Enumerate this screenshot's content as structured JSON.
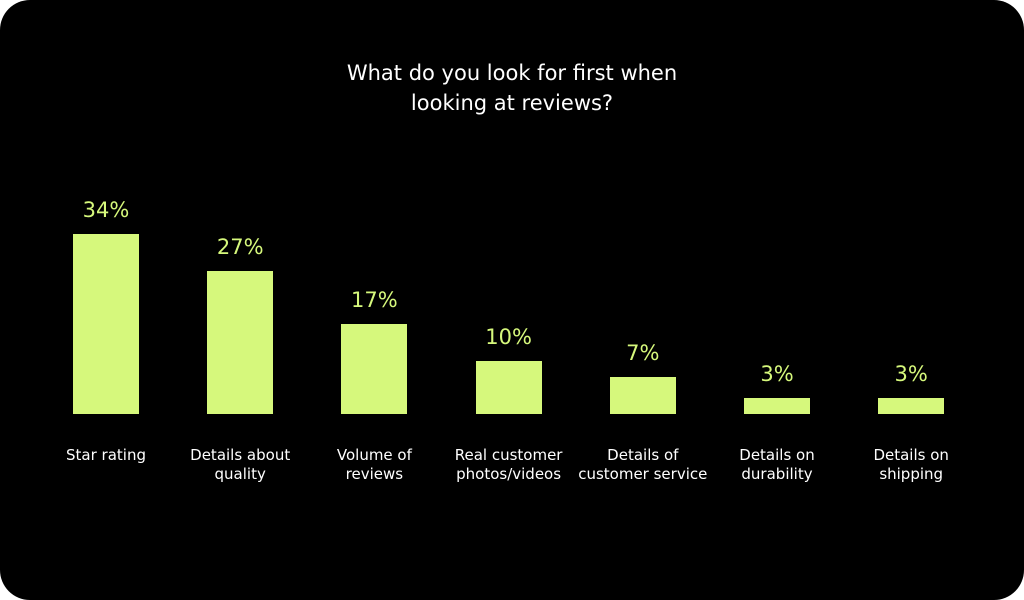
{
  "chart_data": {
    "type": "bar",
    "title": "What do you look for first when looking at reviews?",
    "categories": [
      "Star rating",
      "Details about quality",
      "Volume of reviews",
      "Real customer photos/videos",
      "Details of customer service",
      "Details on durability",
      "Details on shipping"
    ],
    "values": [
      34,
      27,
      17,
      10,
      7,
      3,
      3
    ],
    "value_labels": [
      "34%",
      "27%",
      "17%",
      "10%",
      "7%",
      "3%",
      "3%"
    ],
    "color": "#d6f87c"
  }
}
